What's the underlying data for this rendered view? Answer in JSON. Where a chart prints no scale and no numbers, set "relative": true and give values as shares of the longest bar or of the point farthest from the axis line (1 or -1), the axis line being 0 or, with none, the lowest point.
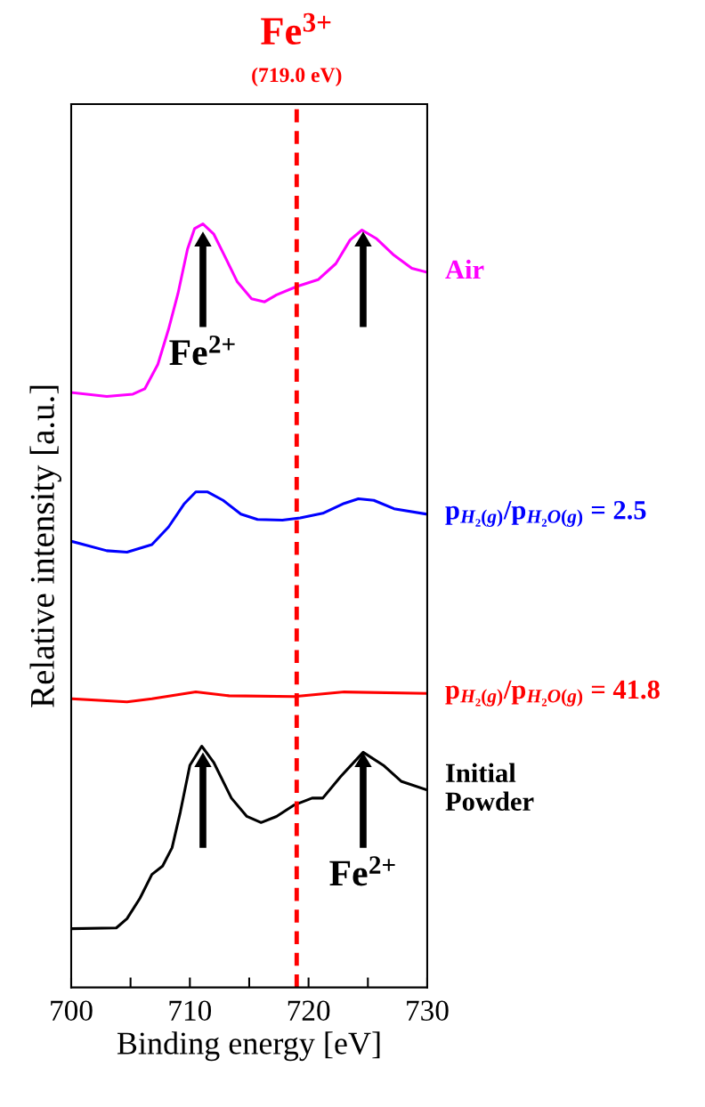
{
  "chart_data": {
    "type": "line",
    "relative": true,
    "xlabel": "Binding energy [eV]",
    "ylabel": "Relative intensity [a.u.]",
    "xlim": [
      700,
      730
    ],
    "xticks": [
      700,
      {
        "value": 705,
        "label": null
      },
      710,
      {
        "value": 715,
        "label": null
      },
      720,
      {
        "value": 725,
        "label": null
      },
      730
    ],
    "grid": false,
    "legend": false,
    "marker": "none",
    "line_style": "solid",
    "tick_labels": "x",
    "series": [
      {
        "name": "Air",
        "color": "#ff00ff",
        "x": [
          700.1,
          703,
          705.2,
          706.2,
          707.3,
          708.2,
          709,
          709.8,
          710.4,
          711.1,
          712,
          712.9,
          714,
          715.2,
          716.3,
          717.3,
          719,
          720.8,
          722.3,
          723.5,
          724.5,
          725.7,
          727.2,
          728.7,
          729.9
        ],
        "values": [
          0.779,
          0.774,
          0.777,
          0.784,
          0.816,
          0.862,
          0.909,
          0.967,
          0.994,
          1,
          0.987,
          0.959,
          0.924,
          0.902,
          0.898,
          0.907,
          0.918,
          0.927,
          0.948,
          0.979,
          0.992,
          0.981,
          0.959,
          0.942,
          0.937
        ]
      },
      {
        "name": "p$_{H₂(g)}$/p$_{H₂O(g)}$ = 2.5",
        "color": "#0000ff",
        "x": [
          700.1,
          703,
          704.7,
          706.8,
          708.2,
          709.5,
          710.5,
          711.5,
          712.8,
          714.3,
          715.7,
          717.8,
          719.3,
          721.2,
          723,
          724.2,
          725.5,
          727.2,
          729.9
        ],
        "values": [
          0.584,
          0.572,
          0.57,
          0.58,
          0.603,
          0.633,
          0.649,
          0.649,
          0.638,
          0.62,
          0.613,
          0.612,
          0.615,
          0.621,
          0.634,
          0.64,
          0.638,
          0.627,
          0.62
        ]
      },
      {
        "name": "p$_{H₂(g)}$/p$_{H₂O(g)}$ = 41.8",
        "color": "#ff0000",
        "x": [
          700.1,
          704.7,
          706.8,
          710.5,
          713.3,
          718.8,
          723,
          729.9
        ],
        "values": [
          0.378,
          0.374,
          0.378,
          0.387,
          0.382,
          0.381,
          0.387,
          0.385
        ]
      },
      {
        "name": "Initial\nPowder",
        "color": "#000000",
        "x": [
          700.1,
          703.8,
          704.7,
          705.8,
          706.8,
          707.7,
          708.5,
          709.2,
          710,
          711,
          712,
          713.5,
          714.8,
          716,
          717.3,
          718.8,
          720.3,
          721.2,
          722.7,
          724.6,
          726.3,
          727.8,
          729.9
        ],
        "values": [
          0.077,
          0.078,
          0.09,
          0.117,
          0.148,
          0.159,
          0.183,
          0.23,
          0.291,
          0.316,
          0.295,
          0.248,
          0.224,
          0.216,
          0.224,
          0.239,
          0.248,
          0.248,
          0.276,
          0.308,
          0.291,
          0.27,
          0.259
        ]
      }
    ],
    "ref_lines": [
      {
        "axis": "x",
        "value": 719.0,
        "label": "Fe$^{3+}$",
        "color": "#ff0000",
        "line_style": "dashed"
      }
    ],
    "annotations": [
      "(719.0 eV)",
      {
        "text": "Fe$^{2+}$",
        "x": 711.1,
        "y": 0.99
      },
      {
        "text": "Fe$^{2+}$",
        "x": 724.6,
        "y": 0.308
      }
    ]
  }
}
